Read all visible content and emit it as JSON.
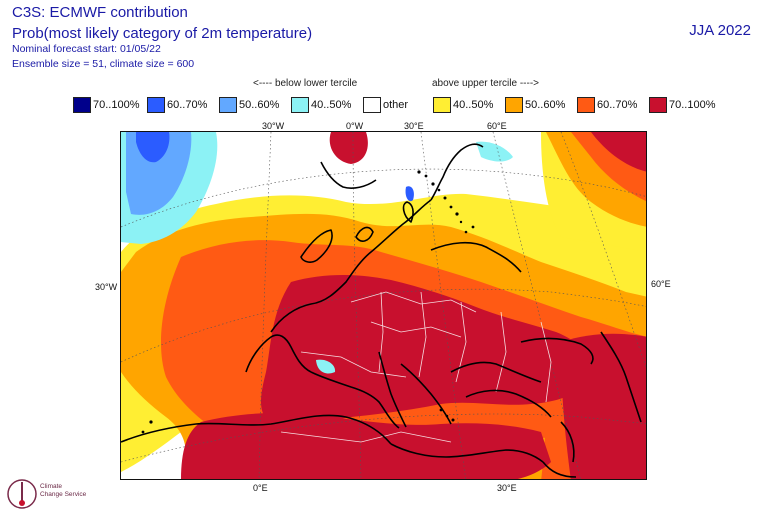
{
  "header": {
    "title": "C3S: ECMWF contribution",
    "subtitle": "Prob(most likely category of 2m temperature)",
    "forecast_start": "Nominal forecast start: 01/05/22",
    "ensemble": "Ensemble size = 51, climate size = 600",
    "season": "JJA 2022"
  },
  "tercile_labels": {
    "below": "<---- below lower tercile",
    "above": "above upper tercile ---->"
  },
  "legend": [
    {
      "label": "70..100%",
      "color": "#00008b"
    },
    {
      "label": "60..70%",
      "color": "#2b5cff"
    },
    {
      "label": "50..60%",
      "color": "#62a8ff"
    },
    {
      "label": "40..50%",
      "color": "#8cf2f5"
    },
    {
      "label": "other",
      "color": "#ffffff"
    },
    {
      "label": "40..50%",
      "color": "#ffee33"
    },
    {
      "label": "50..60%",
      "color": "#ffa500"
    },
    {
      "label": "60..70%",
      "color": "#ff5a14"
    },
    {
      "label": "70..100%",
      "color": "#c8102e"
    }
  ],
  "coord_labels": {
    "top_30w": "30°W",
    "top_0w": "0°W",
    "top_30e": "30°E",
    "top_60e": "60°E",
    "left_30w": "30°W",
    "right_60e": "60°E",
    "bottom_0e": "0°E",
    "bottom_30e": "30°E"
  },
  "logo": {
    "line1": "Climate",
    "line2": "Change Service"
  }
}
